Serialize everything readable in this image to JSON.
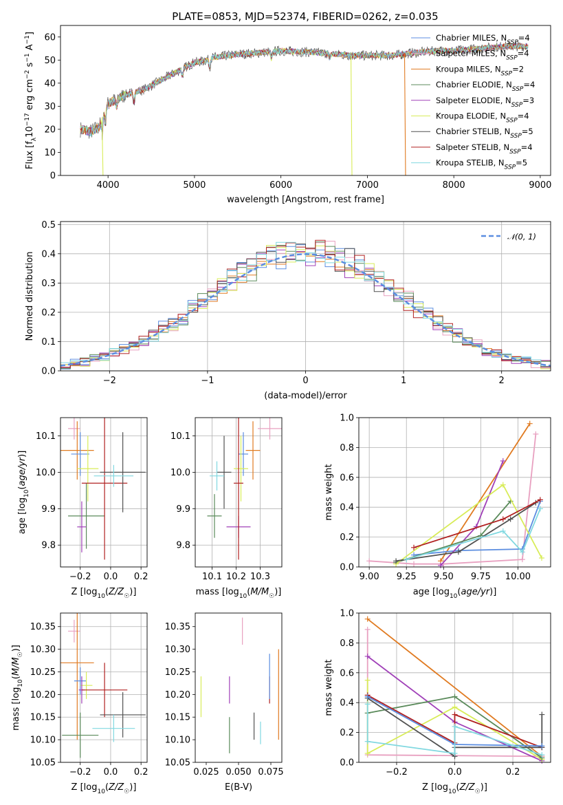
{
  "title": "PLATE=0853, MJD=52374, FIBERID=0262, z=0.035",
  "colors": {
    "chabrier_miles": "#5b8de0",
    "salpeter_miles": "#e8a0c0",
    "kroupa_miles": "#e07a20",
    "chabrier_elodie": "#5a8a5a",
    "salpeter_elodie": "#a040b8",
    "kroupa_elodie": "#d8ec58",
    "chabrier_stelib": "#505050",
    "salpeter_stelib": "#b02020",
    "kroupa_stelib": "#80d8e0"
  },
  "chart_data": [
    {
      "id": "spectrum",
      "type": "line",
      "title": "PLATE=0853, MJD=52374, FIBERID=0262, z=0.035",
      "xlabel": "wavelength [Angstrom, rest frame]",
      "ylabel": "Flux [f_λ 10^-17 erg cm^-2 s^-1 A^-1]",
      "xlim": [
        3450,
        9120
      ],
      "ylim": [
        0,
        65
      ],
      "xticks": [
        "4000",
        "5000",
        "6000",
        "7000",
        "8000",
        "9000"
      ],
      "yticks": [
        "0",
        "10",
        "20",
        "30",
        "40",
        "50",
        "60"
      ],
      "grid": false,
      "legend_position": "top-right",
      "legend": [
        {
          "label": "Chabrier MILES, N",
          "sub": "SSP",
          "tail": "=4",
          "color": "chabrier_miles"
        },
        {
          "label": "Salpeter MILES, N",
          "sub": "SSP",
          "tail": "=4",
          "color": "salpeter_miles"
        },
        {
          "label": "Kroupa MILES, N",
          "sub": "SSP",
          "tail": "=2",
          "color": "kroupa_miles"
        },
        {
          "label": "Chabrier ELODIE, N",
          "sub": "SSP",
          "tail": "=4",
          "color": "chabrier_elodie"
        },
        {
          "label": "Salpeter ELODIE, N",
          "sub": "SSP",
          "tail": "=3",
          "color": "salpeter_elodie"
        },
        {
          "label": "Kroupa ELODIE, N",
          "sub": "SSP",
          "tail": "=4",
          "color": "kroupa_elodie"
        },
        {
          "label": "Chabrier STELIB, N",
          "sub": "SSP",
          "tail": "=5",
          "color": "chabrier_stelib"
        },
        {
          "label": "Salpeter STELIB, N",
          "sub": "SSP",
          "tail": "=4",
          "color": "salpeter_stelib"
        },
        {
          "label": "Kroupa STELIB, N",
          "sub": "SSP",
          "tail": "=5",
          "color": "kroupa_stelib"
        }
      ],
      "continuum": {
        "x": [
          3680,
          3800,
          3900,
          3950,
          4000,
          4100,
          4200,
          4300,
          4400,
          4500,
          4600,
          4700,
          4800,
          4900,
          5000,
          5100,
          5200,
          5300,
          5400,
          5500,
          5700,
          6000,
          6300,
          6500,
          6800,
          7000,
          7300,
          7500,
          7800,
          8000,
          8300,
          8600,
          8850
        ],
        "y": [
          20,
          19,
          21,
          28,
          31,
          33,
          35,
          36,
          37,
          39,
          41,
          43,
          45,
          47,
          49,
          49.5,
          51,
          51.5,
          52,
          52.5,
          53,
          54,
          53.5,
          53,
          52,
          52,
          52,
          53,
          54,
          54,
          55,
          56,
          56
        ]
      },
      "dropouts": [
        {
          "series": "kroupa_elodie",
          "from_x": 3930,
          "to_y": 0
        },
        {
          "series": "kroupa_elodie",
          "from_x": 6810,
          "to_y": 0
        },
        {
          "series": "kroupa_miles",
          "from_x": 7430,
          "to_y": 0
        }
      ]
    },
    {
      "id": "residuals",
      "type": "bar",
      "xlabel": "(data-model)/error",
      "ylabel": "Normed distribution",
      "xlim": [
        -2.5,
        2.5
      ],
      "ylim": [
        0,
        0.51
      ],
      "xticks": [
        "−2",
        "−1",
        "0",
        "1",
        "2"
      ],
      "yticks": [
        "0.0",
        "0.1",
        "0.2",
        "0.3",
        "0.4",
        "0.5"
      ],
      "grid": true,
      "legend_position": "top-right",
      "legend": [
        {
          "label": "𝒩(0, 1)",
          "color": "chabrier_miles"
        }
      ],
      "bin_width": 0.1,
      "bin_start": -2.5
    },
    {
      "id": "age_vs_Z",
      "type": "scatter",
      "xlabel": "Z [log10(Z/Z☉)]",
      "ylabel": "age  [log10(age/yr)]",
      "xlim": [
        -0.33,
        0.24
      ],
      "ylim": [
        9.74,
        10.15
      ],
      "xticks": [
        "−0.2",
        "0.0",
        "0.2"
      ],
      "yticks": [
        "9.8",
        "9.9",
        "10.0",
        "10.1"
      ],
      "grid": true,
      "points": [
        {
          "series": "salpeter_miles",
          "x": -0.24,
          "y": 10.12,
          "xerr": 0.04,
          "yerr": 0.03
        },
        {
          "series": "kroupa_miles",
          "x": -0.22,
          "y": 10.06,
          "xerr": 0.11,
          "yerr": 0.08
        },
        {
          "series": "chabrier_miles",
          "x": -0.2,
          "y": 10.05,
          "xerr": 0.06,
          "yerr": 0.06
        },
        {
          "series": "kroupa_elodie",
          "x": -0.15,
          "y": 10.01,
          "xerr": 0.07,
          "yerr": 0.09
        },
        {
          "series": "chabrier_elodie",
          "x": -0.16,
          "y": 9.88,
          "xerr": 0.12,
          "yerr": 0.09
        },
        {
          "series": "salpeter_elodie",
          "x": -0.19,
          "y": 9.85,
          "xerr": 0.03,
          "yerr": 0.07
        },
        {
          "series": "salpeter_stelib",
          "x": -0.04,
          "y": 9.97,
          "xerr": 0.15,
          "yerr": 0.21
        },
        {
          "series": "chabrier_stelib",
          "x": 0.08,
          "y": 10.0,
          "xerr": 0.15,
          "yerr": 0.11
        },
        {
          "series": "kroupa_stelib",
          "x": 0.02,
          "y": 9.99,
          "xerr": 0.13,
          "yerr": 0.03
        }
      ]
    },
    {
      "id": "age_vs_mass",
      "type": "scatter",
      "xlabel": "mass [log10(M/M☉)]",
      "ylabel": "",
      "xlim": [
        10.03,
        10.39
      ],
      "ylim": [
        9.74,
        10.15
      ],
      "xticks": [
        "10.1",
        "10.2",
        "10.3"
      ],
      "yticks": [
        "9.8",
        "9.9",
        "10.0",
        "10.1"
      ],
      "grid": true,
      "points": [
        {
          "series": "salpeter_miles",
          "x": 10.34,
          "y": 10.12,
          "xerr": 0.05,
          "yerr": 0.03
        },
        {
          "series": "kroupa_miles",
          "x": 10.27,
          "y": 10.06,
          "xerr": 0.03,
          "yerr": 0.08
        },
        {
          "series": "chabrier_miles",
          "x": 10.23,
          "y": 10.05,
          "xerr": 0.02,
          "yerr": 0.06
        },
        {
          "series": "kroupa_elodie",
          "x": 10.22,
          "y": 10.01,
          "xerr": 0.03,
          "yerr": 0.09
        },
        {
          "series": "chabrier_elodie",
          "x": 10.11,
          "y": 9.88,
          "xerr": 0.03,
          "yerr": 0.06
        },
        {
          "series": "salpeter_elodie",
          "x": 10.21,
          "y": 9.85,
          "xerr": 0.05,
          "yerr": 0.03
        },
        {
          "series": "salpeter_stelib",
          "x": 10.21,
          "y": 9.97,
          "xerr": 0.02,
          "yerr": 0.21
        },
        {
          "series": "chabrier_stelib",
          "x": 10.15,
          "y": 10.0,
          "xerr": 0.03,
          "yerr": 0.1
        },
        {
          "series": "kroupa_stelib",
          "x": 10.12,
          "y": 9.99,
          "xerr": 0.03,
          "yerr": 0.04
        }
      ]
    },
    {
      "id": "weight_vs_age",
      "type": "line",
      "xlabel": "age  [log10(age/yr)]",
      "ylabel": "mass weight",
      "xlim": [
        8.93,
        10.22
      ],
      "ylim": [
        0,
        1
      ],
      "xticks": [
        "9.00",
        "9.25",
        "9.50",
        "9.75",
        "10.00"
      ],
      "yticks": [
        "0.0",
        "0.2",
        "0.4",
        "0.6",
        "0.8",
        "1.0"
      ],
      "grid": true,
      "series": [
        {
          "series": "salpeter_miles",
          "x": [
            9.0,
            9.3,
            9.5,
            10.03,
            10.12
          ],
          "y": [
            0.04,
            0.02,
            0.02,
            0.05,
            0.89
          ]
        },
        {
          "series": "kroupa_miles",
          "x": [
            9.48,
            10.08
          ],
          "y": [
            0.04,
            0.96
          ]
        },
        {
          "series": "chabrier_miles",
          "x": [
            9.3,
            9.6,
            10.03,
            10.15
          ],
          "y": [
            0.08,
            0.11,
            0.12,
            0.44
          ]
        },
        {
          "series": "salpeter_elodie",
          "x": [
            9.48,
            9.72,
            9.9
          ],
          "y": [
            0.01,
            0.27,
            0.71
          ]
        },
        {
          "series": "chabrier_elodie",
          "x": [
            9.18,
            9.75,
            9.95
          ],
          "y": [
            0.03,
            0.21,
            0.44
          ]
        },
        {
          "series": "kroupa_elodie",
          "x": [
            9.18,
            9.9,
            10.16
          ],
          "y": [
            0.02,
            0.55,
            0.06
          ]
        },
        {
          "series": "chabrier_stelib",
          "x": [
            9.18,
            9.6,
            9.95,
            10.12
          ],
          "y": [
            0.04,
            0.1,
            0.32,
            0.43
          ]
        },
        {
          "series": "salpeter_stelib",
          "x": [
            9.3,
            9.9,
            10.15
          ],
          "y": [
            0.13,
            0.32,
            0.45
          ]
        },
        {
          "series": "kroupa_stelib",
          "x": [
            9.25,
            9.9,
            10.03,
            10.15
          ],
          "y": [
            0.05,
            0.24,
            0.1,
            0.39
          ]
        }
      ]
    },
    {
      "id": "mass_vs_Z",
      "type": "scatter",
      "xlabel": "Z [log10(Z/Z☉)]",
      "ylabel": "mass [log10(M/M☉)]",
      "xlim": [
        -0.33,
        0.24
      ],
      "ylim": [
        10.05,
        10.38
      ],
      "xticks": [
        "−0.2",
        "0.0",
        "0.2"
      ],
      "yticks": [
        "10.05",
        "10.10",
        "10.15",
        "10.20",
        "10.25",
        "10.30",
        "10.35"
      ],
      "grid": true,
      "points": [
        {
          "series": "salpeter_miles",
          "x": -0.24,
          "y": 10.34,
          "xerr": 0.04,
          "yerr": 0.025
        },
        {
          "series": "kroupa_miles",
          "x": -0.22,
          "y": 10.27,
          "xerr": 0.11,
          "yerr": 0.17
        },
        {
          "series": "chabrier_miles",
          "x": -0.2,
          "y": 10.23,
          "xerr": 0.04,
          "yerr": 0.03
        },
        {
          "series": "kroupa_elodie",
          "x": -0.16,
          "y": 10.22,
          "xerr": 0.04,
          "yerr": 0.03
        },
        {
          "series": "chabrier_elodie",
          "x": -0.2,
          "y": 10.11,
          "xerr": 0.12,
          "yerr": 0.05
        },
        {
          "series": "salpeter_elodie",
          "x": -0.19,
          "y": 10.21,
          "xerr": 0.02,
          "yerr": 0.03
        },
        {
          "series": "salpeter_stelib",
          "x": -0.04,
          "y": 10.21,
          "xerr": 0.15,
          "yerr": 0.06
        },
        {
          "series": "chabrier_stelib",
          "x": 0.08,
          "y": 10.155,
          "xerr": 0.15,
          "yerr": 0.05
        },
        {
          "series": "kroupa_stelib",
          "x": 0.02,
          "y": 10.125,
          "xerr": 0.14,
          "yerr": 0.03
        }
      ]
    },
    {
      "id": "mass_vs_ebv",
      "type": "scatter",
      "xlabel": "E(B-V)",
      "ylabel": "",
      "xlim": [
        0.0165,
        0.0835
      ],
      "ylim": [
        10.05,
        10.38
      ],
      "xticks": [
        "0.025",
        "0.050",
        "0.075"
      ],
      "yticks": [
        "10.05",
        "10.10",
        "10.15",
        "10.20",
        "10.25",
        "10.30",
        "10.35"
      ],
      "grid": false,
      "points": [
        {
          "series": "kroupa_elodie",
          "x": 0.021,
          "y": 10.195,
          "yerr": 0.045
        },
        {
          "series": "chabrier_elodie",
          "x": 0.043,
          "y": 10.11,
          "yerr": 0.04
        },
        {
          "series": "salpeter_elodie",
          "x": 0.043,
          "y": 10.21,
          "yerr": 0.03
        },
        {
          "series": "salpeter_miles",
          "x": 0.053,
          "y": 10.34,
          "yerr": 0.03
        },
        {
          "series": "chabrier_stelib",
          "x": 0.062,
          "y": 10.13,
          "yerr": 0.03
        },
        {
          "series": "kroupa_stelib",
          "x": 0.067,
          "y": 10.115,
          "yerr": 0.025
        },
        {
          "series": "salpeter_stelib",
          "x": 0.074,
          "y": 10.21,
          "yerr": 0.03
        },
        {
          "series": "chabrier_miles",
          "x": 0.074,
          "y": 10.24,
          "yerr": 0.05
        },
        {
          "series": "kroupa_miles",
          "x": 0.081,
          "y": 10.2,
          "yerr": 0.1
        }
      ]
    },
    {
      "id": "weight_vs_Z",
      "type": "line",
      "xlabel": "Z [log10(Z/Z☉)]",
      "ylabel": "mass weight",
      "xlim": [
        -0.33,
        0.33
      ],
      "ylim": [
        0,
        1
      ],
      "xticks": [
        "−0.2",
        "0.0",
        "0.2"
      ],
      "yticks": [
        "0.0",
        "0.2",
        "0.4",
        "0.6",
        "0.8",
        "1.0"
      ],
      "grid": true,
      "series": [
        {
          "series": "kroupa_miles",
          "x": [
            -0.3,
            0.3
          ],
          "y": [
            0.96,
            0.04
          ]
        },
        {
          "series": "salpeter_miles",
          "x": [
            -0.3,
            -0.3,
            0.3,
            0.3
          ],
          "y": [
            0.89,
            0.05,
            0.04,
            0.02
          ]
        },
        {
          "series": "salpeter_elodie",
          "x": [
            -0.3,
            0.0,
            0.3
          ],
          "y": [
            0.71,
            0.27,
            0.01
          ]
        },
        {
          "series": "kroupa_elodie",
          "x": [
            -0.3,
            -0.3,
            0.0,
            0.3
          ],
          "y": [
            0.55,
            0.06,
            0.37,
            0.02
          ]
        },
        {
          "series": "chabrier_elodie",
          "x": [
            -0.3,
            0.0,
            0.3
          ],
          "y": [
            0.33,
            0.44,
            0.03
          ]
        },
        {
          "series": "salpeter_stelib",
          "x": [
            -0.3,
            0.0,
            0.0,
            0.3
          ],
          "y": [
            0.45,
            0.13,
            0.32,
            0.1
          ]
        },
        {
          "series": "chabrier_stelib",
          "x": [
            -0.3,
            0.0,
            0.0,
            0.3,
            0.3
          ],
          "y": [
            0.43,
            0.04,
            0.1,
            0.1,
            0.32
          ]
        },
        {
          "series": "chabrier_miles",
          "x": [
            -0.3,
            0.0,
            0.3
          ],
          "y": [
            0.44,
            0.12,
            0.11
          ]
        },
        {
          "series": "kroupa_stelib",
          "x": [
            -0.3,
            -0.3,
            0.0,
            0.0,
            0.3
          ],
          "y": [
            0.39,
            0.14,
            0.06,
            0.24,
            0.05
          ]
        }
      ]
    }
  ]
}
